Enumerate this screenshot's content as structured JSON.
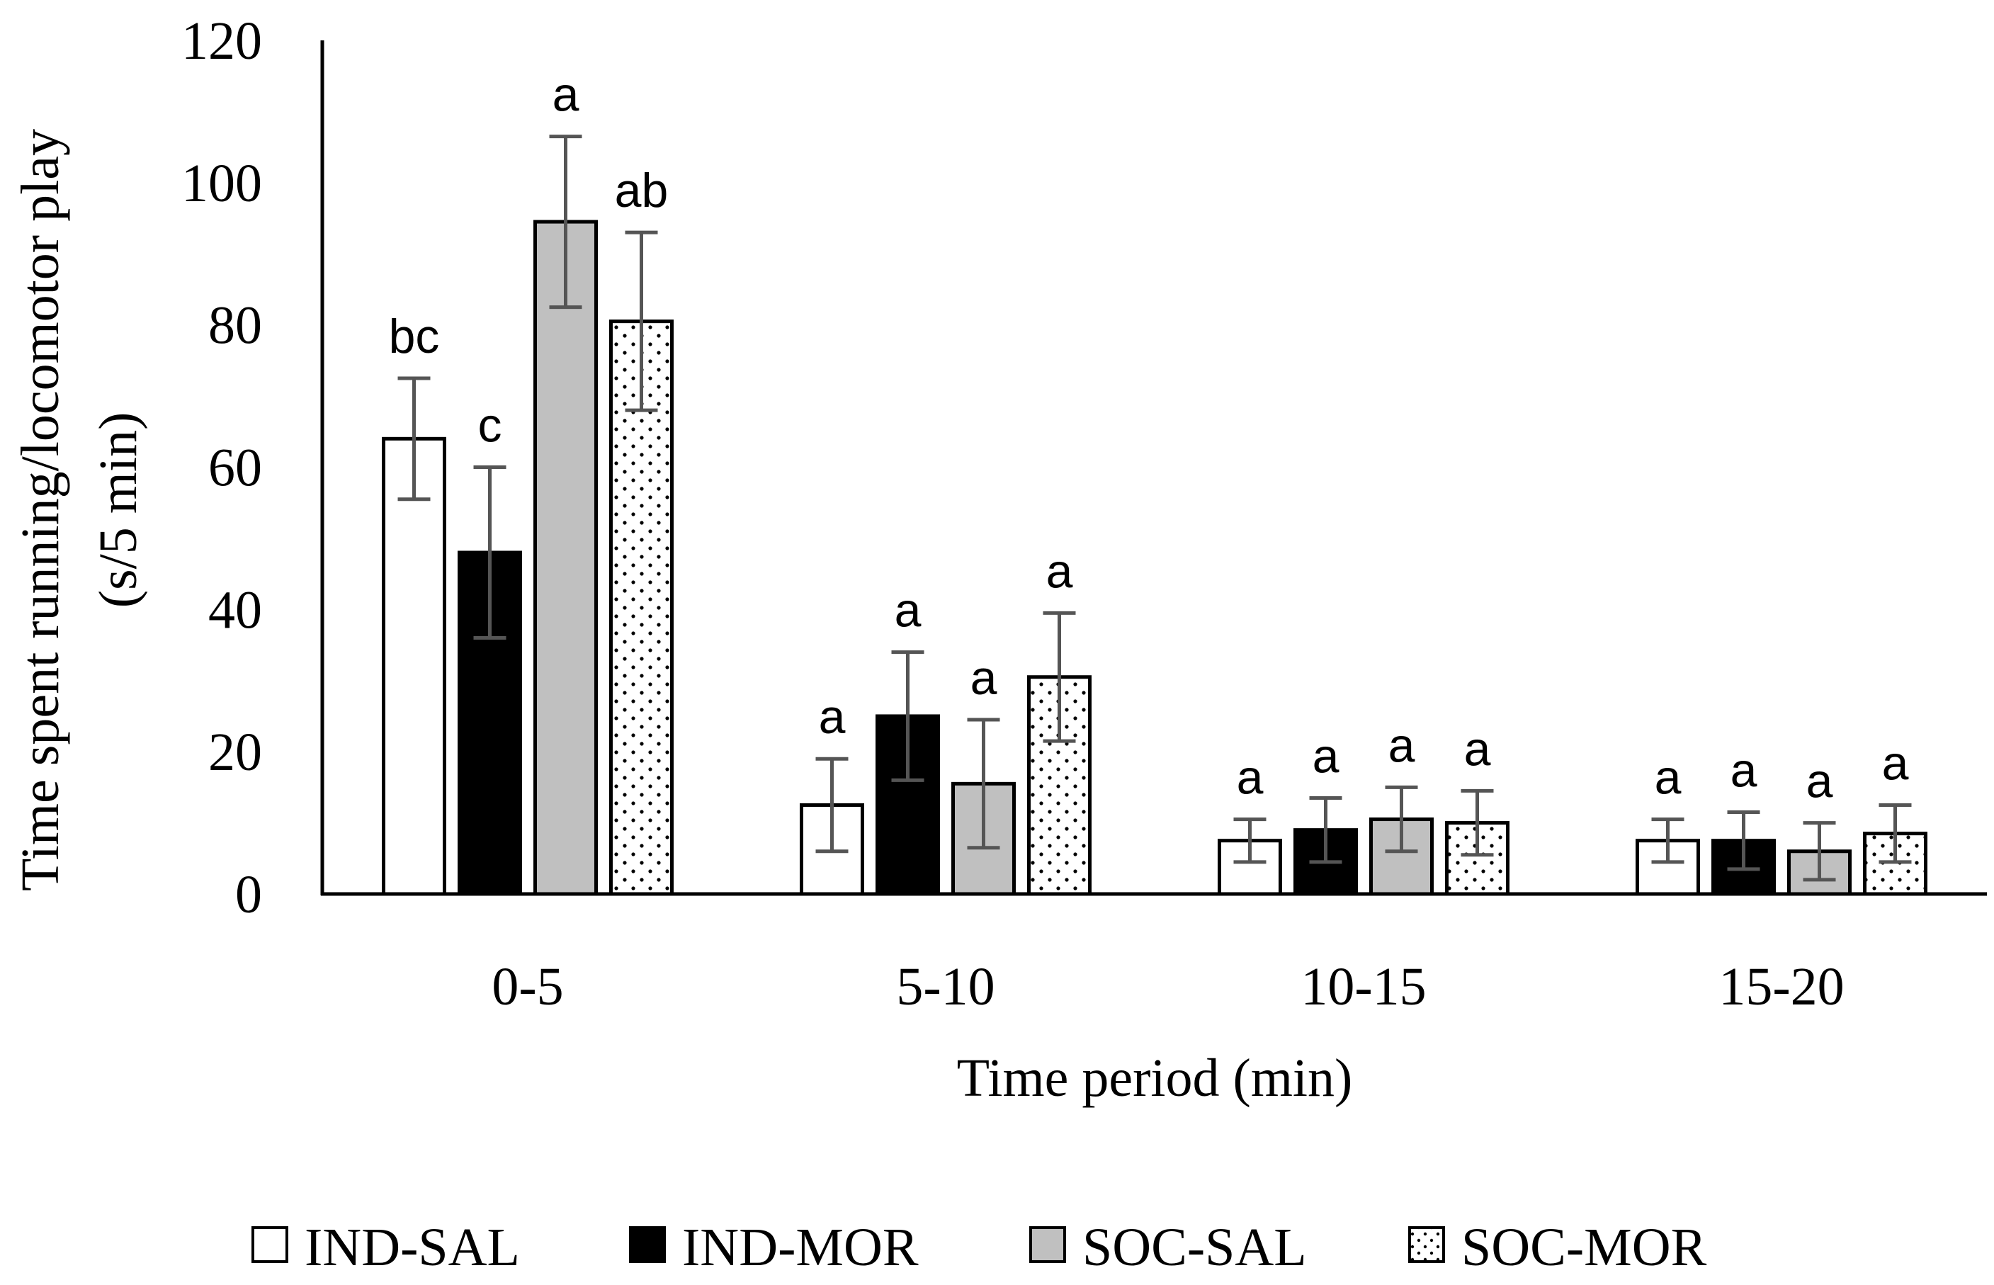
{
  "chart_data": {
    "type": "bar",
    "xlabel": "Time period (min)",
    "ylabel_line1": "Time spent running/locomotor play",
    "ylabel_line2": "(s/5 min)",
    "ylim": [
      0,
      120
    ],
    "yticks": [
      "0",
      "20",
      "40",
      "60",
      "80",
      "100",
      "120"
    ],
    "categories": [
      "0-5",
      "5-10",
      "10-15",
      "15-20"
    ],
    "series": [
      {
        "name": "IND-SAL",
        "fill": "white",
        "values": [
          64,
          12.5,
          7.5,
          7.5
        ],
        "errors": [
          8.5,
          6.5,
          3,
          3
        ],
        "letters": [
          "bc",
          "a",
          "a",
          "a"
        ]
      },
      {
        "name": "IND-MOR",
        "fill": "black",
        "values": [
          48,
          25,
          9,
          7.5
        ],
        "errors": [
          12,
          9,
          4.5,
          4
        ],
        "letters": [
          "c",
          "a",
          "a",
          "a"
        ]
      },
      {
        "name": "SOC-SAL",
        "fill": "gray",
        "values": [
          94.5,
          15.5,
          10.5,
          6
        ],
        "errors": [
          12,
          9,
          4.5,
          4
        ],
        "letters": [
          "a",
          "a",
          "a",
          "a"
        ]
      },
      {
        "name": "SOC-MOR",
        "fill": "dotted",
        "values": [
          80.5,
          30.5,
          10,
          8.5
        ],
        "errors": [
          12.5,
          9,
          4.5,
          4
        ],
        "letters": [
          "ab",
          "a",
          "a",
          "a"
        ]
      }
    ],
    "legend_position": "bottom"
  },
  "colors": {
    "axis": "#000000",
    "error_bar": "#555555",
    "bar_outline": "#000000",
    "gray_fill": "#c0c0c0",
    "black_fill": "#000000",
    "white_fill": "#ffffff"
  }
}
